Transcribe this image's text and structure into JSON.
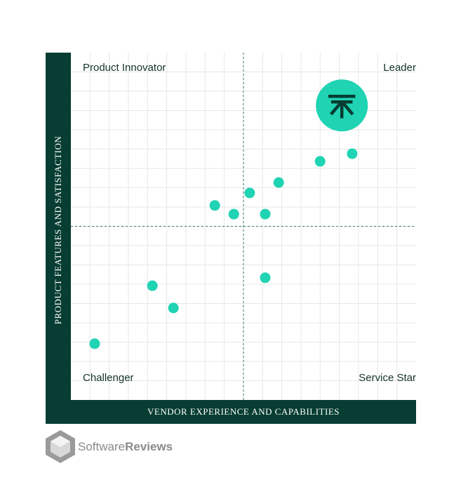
{
  "chart_data": {
    "type": "scatter",
    "x_label": "VENDOR EXPERIENCE AND CAPABILITIES",
    "y_label": "PRODUCT FEATURES AND SATISFACTION",
    "quadrant_labels": {
      "top_left": "Product Innovator",
      "top_right": "Leader",
      "bottom_left": "Challenger",
      "bottom_right": "Service Star"
    },
    "xlim": [
      0,
      100
    ],
    "ylim": [
      0,
      100
    ],
    "grid": true,
    "series": [
      {
        "color": "#1fd3b3",
        "x": [
          6.9,
          23.6,
          29.7,
          41.7,
          47.2,
          51.8,
          56.3,
          56.3,
          60.2,
          72.2,
          81.5
        ],
        "y": [
          16.2,
          32.9,
          26.5,
          56.0,
          53.5,
          59.6,
          53.5,
          35.2,
          62.6,
          68.7,
          70.9
        ]
      }
    ],
    "highlight": {
      "color": "#1fd3b3",
      "x": 78.5,
      "y": 84.8
    },
    "frame_color": "#073d32"
  },
  "brand": {
    "text_regular": "Software",
    "text_bold": "Reviews"
  }
}
